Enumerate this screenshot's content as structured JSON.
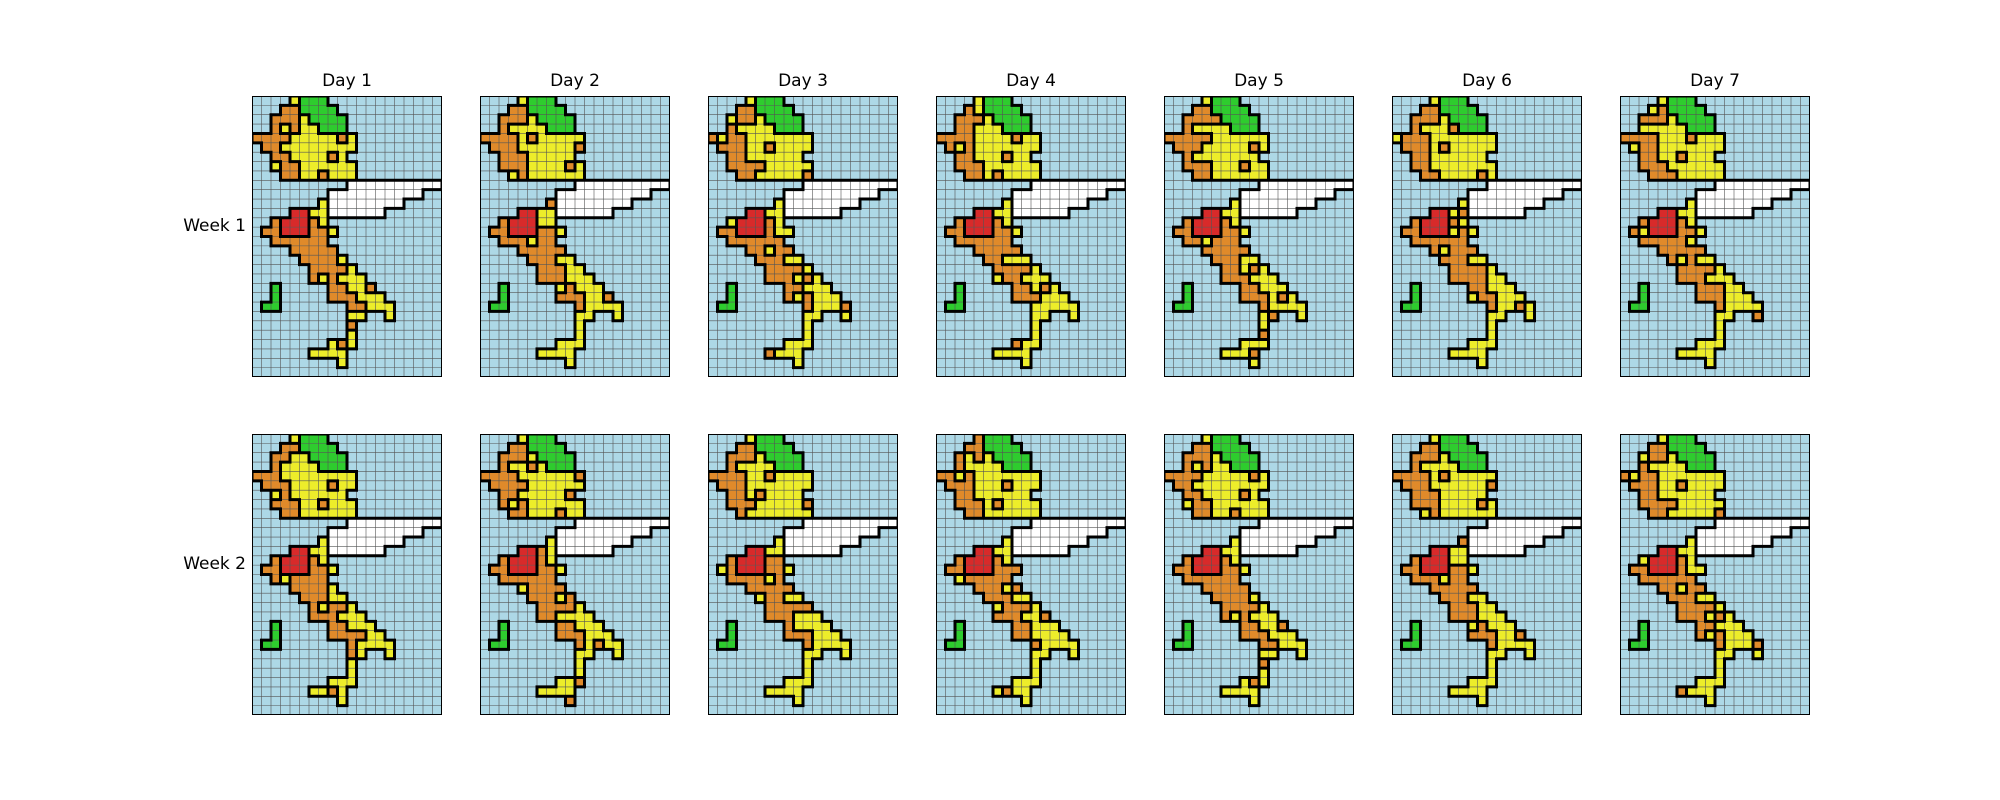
{
  "figure": {
    "columns": [
      "Day 1",
      "Day 2",
      "Day 3",
      "Day 4",
      "Day 5",
      "Day 6",
      "Day 7"
    ],
    "rows": [
      "Week 1",
      "Week 2"
    ]
  },
  "map_grid": {
    "cols": 20,
    "rows": 30,
    "palette": {
      "sea": "#add8e6",
      "yellow": "#eded2a",
      "orange": "#e08a2a",
      "green": "#2ecc2e",
      "red": "#d82a2a",
      "white": "#ffffff",
      "grid": "#555555",
      "border": "#000000"
    }
  }
}
